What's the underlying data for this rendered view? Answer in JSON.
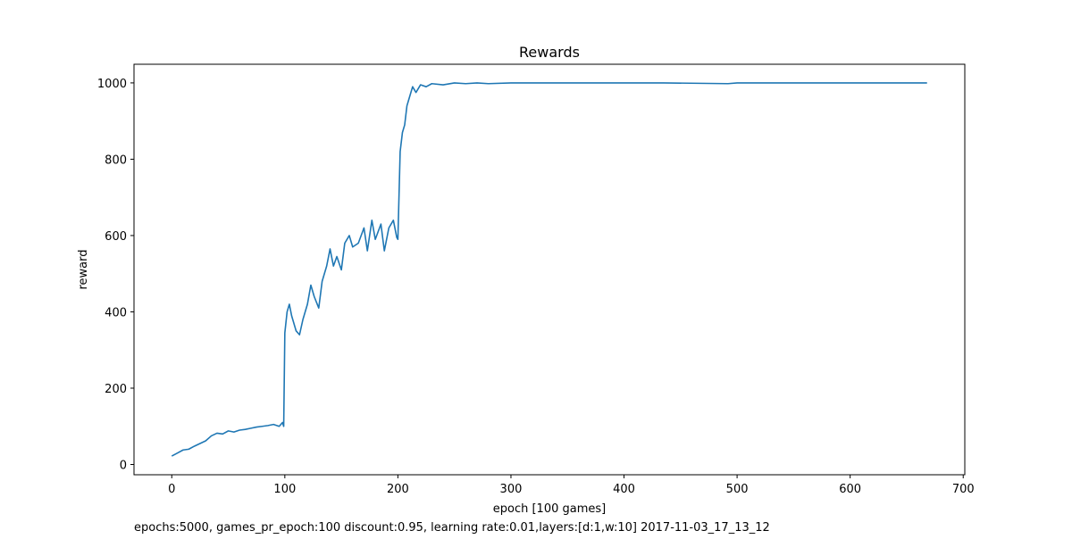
{
  "chart_data": {
    "type": "line",
    "title": "Rewards",
    "x_label": "epoch [100 games]",
    "y_label": "reward",
    "footnote": "epochs:5000, games_pr_epoch:100 discount:0.95, learning rate:0.01,layers:[d:1,w:10] 2017-11-03_17_13_12",
    "x": [
      0,
      5,
      10,
      15,
      20,
      25,
      30,
      35,
      40,
      45,
      50,
      55,
      60,
      65,
      70,
      75,
      80,
      85,
      90,
      95,
      98,
      99,
      100,
      102,
      104,
      106,
      110,
      113,
      116,
      120,
      123,
      126,
      130,
      133,
      137,
      140,
      143,
      146,
      150,
      153,
      157,
      160,
      165,
      170,
      173,
      177,
      180,
      185,
      188,
      192,
      196,
      199,
      200,
      202,
      204,
      206,
      208,
      210,
      213,
      216,
      220,
      225,
      230,
      240,
      250,
      260,
      270,
      280,
      300,
      350,
      400,
      435,
      492,
      500,
      600,
      668
    ],
    "series": [
      {
        "name": "reward",
        "color": "#1f77b4",
        "values": [
          22,
          30,
          38,
          40,
          48,
          55,
          62,
          75,
          82,
          80,
          88,
          85,
          90,
          92,
          95,
          98,
          100,
          102,
          105,
          100,
          110,
          100,
          345,
          400,
          420,
          390,
          350,
          340,
          380,
          420,
          470,
          440,
          410,
          480,
          520,
          565,
          520,
          545,
          510,
          580,
          600,
          570,
          580,
          620,
          560,
          640,
          590,
          630,
          560,
          620,
          640,
          595,
          590,
          820,
          870,
          890,
          940,
          960,
          990,
          975,
          995,
          990,
          998,
          995,
          1000,
          998,
          1000,
          998,
          1000,
          1000,
          1000,
          1000,
          998,
          1000,
          1000,
          1000
        ]
      }
    ],
    "xlim": [
      -33.4,
      701.4
    ],
    "ylim": [
      -26.9,
      1048.9
    ],
    "xticks": [
      0,
      100,
      200,
      300,
      400,
      500,
      600,
      700
    ],
    "yticks": [
      0,
      200,
      400,
      600,
      800,
      1000
    ]
  }
}
